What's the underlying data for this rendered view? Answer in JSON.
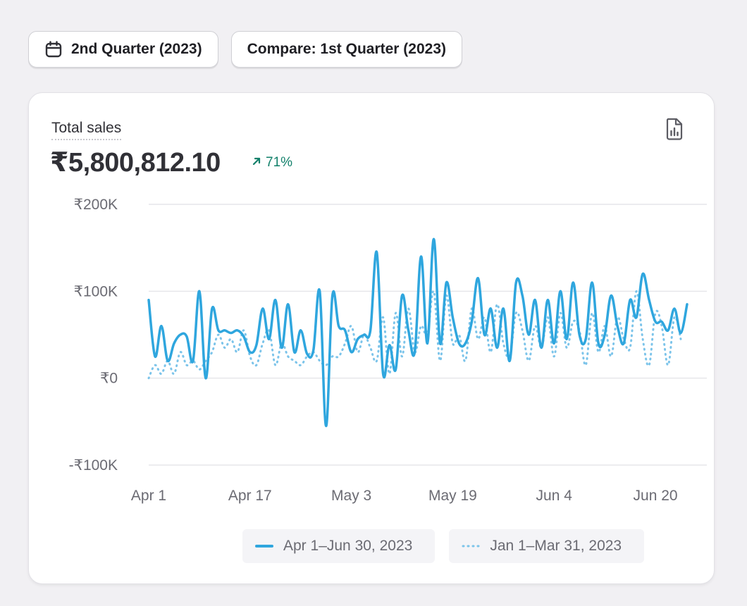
{
  "filters": {
    "date_range_label": "2nd Quarter (2023)",
    "compare_label": "Compare: 1st Quarter (2023)"
  },
  "card": {
    "metric_label": "Total sales",
    "metric_value": "₹5,800,812.10",
    "change": "71%",
    "accent_color": "#2fa6de",
    "positive_color": "#11806a"
  },
  "chart_data": {
    "type": "line",
    "title": "Total sales",
    "xlabel": "",
    "ylabel": "",
    "ylim": [
      -100000,
      200000
    ],
    "y_ticks": [
      {
        "value": 200000,
        "label": "₹200K"
      },
      {
        "value": 100000,
        "label": "₹100K"
      },
      {
        "value": 0,
        "label": "₹0"
      },
      {
        "value": -100000,
        "label": "-₹100K"
      }
    ],
    "x_ticks": [
      {
        "index": 0,
        "label": "Apr 1"
      },
      {
        "index": 16,
        "label": "Apr 17"
      },
      {
        "index": 32,
        "label": "May 3"
      },
      {
        "index": 48,
        "label": "May 19"
      },
      {
        "index": 64,
        "label": "Jun 4"
      },
      {
        "index": 80,
        "label": "Jun 20"
      }
    ],
    "series": [
      {
        "name": "Apr 1–Jun 30, 2023",
        "style": "solid",
        "values": [
          90000,
          25000,
          60000,
          20000,
          40000,
          50000,
          48000,
          20000,
          100000,
          0,
          80000,
          55000,
          55000,
          52000,
          55000,
          48000,
          30000,
          38000,
          80000,
          45000,
          90000,
          35000,
          85000,
          30000,
          55000,
          28000,
          32000,
          100000,
          -55000,
          95000,
          60000,
          55000,
          30000,
          45000,
          50000,
          55000,
          145000,
          5000,
          38000,
          10000,
          95000,
          55000,
          30000,
          140000,
          40000,
          160000,
          40000,
          110000,
          70000,
          40000,
          40000,
          65000,
          115000,
          50000,
          80000,
          35000,
          80000,
          20000,
          110000,
          95000,
          50000,
          90000,
          35000,
          90000,
          40000,
          100000,
          45000,
          110000,
          50000,
          45000,
          110000,
          40000,
          50000,
          95000,
          60000,
          40000,
          90000,
          70000,
          120000,
          90000,
          65000,
          65000,
          55000,
          80000,
          52000,
          85000
        ]
      },
      {
        "name": "Jan 1–Mar 31, 2023",
        "style": "dotted",
        "values": [
          0,
          15000,
          5000,
          20000,
          5000,
          30000,
          15000,
          20000,
          10000,
          20000,
          30000,
          50000,
          35000,
          45000,
          30000,
          55000,
          25000,
          15000,
          40000,
          55000,
          15000,
          40000,
          25000,
          20000,
          15000,
          25000,
          30000,
          20000,
          15000,
          25000,
          25000,
          40000,
          60000,
          30000,
          50000,
          35000,
          20000,
          70000,
          5000,
          75000,
          25000,
          80000,
          30000,
          60000,
          50000,
          100000,
          20000,
          95000,
          40000,
          50000,
          20000,
          80000,
          45000,
          70000,
          30000,
          85000,
          40000,
          25000,
          75000,
          55000,
          20000,
          60000,
          35000,
          70000,
          25000,
          75000,
          35000,
          65000,
          55000,
          15000,
          75000,
          30000,
          60000,
          25000,
          70000,
          45000,
          35000,
          100000,
          45000,
          15000,
          75000,
          60000,
          15000,
          70000,
          45000
        ]
      }
    ]
  },
  "legend": [
    {
      "label": "Apr 1–Jun 30, 2023",
      "style": "solid"
    },
    {
      "label": "Jan 1–Mar 31, 2023",
      "style": "dotted"
    }
  ]
}
